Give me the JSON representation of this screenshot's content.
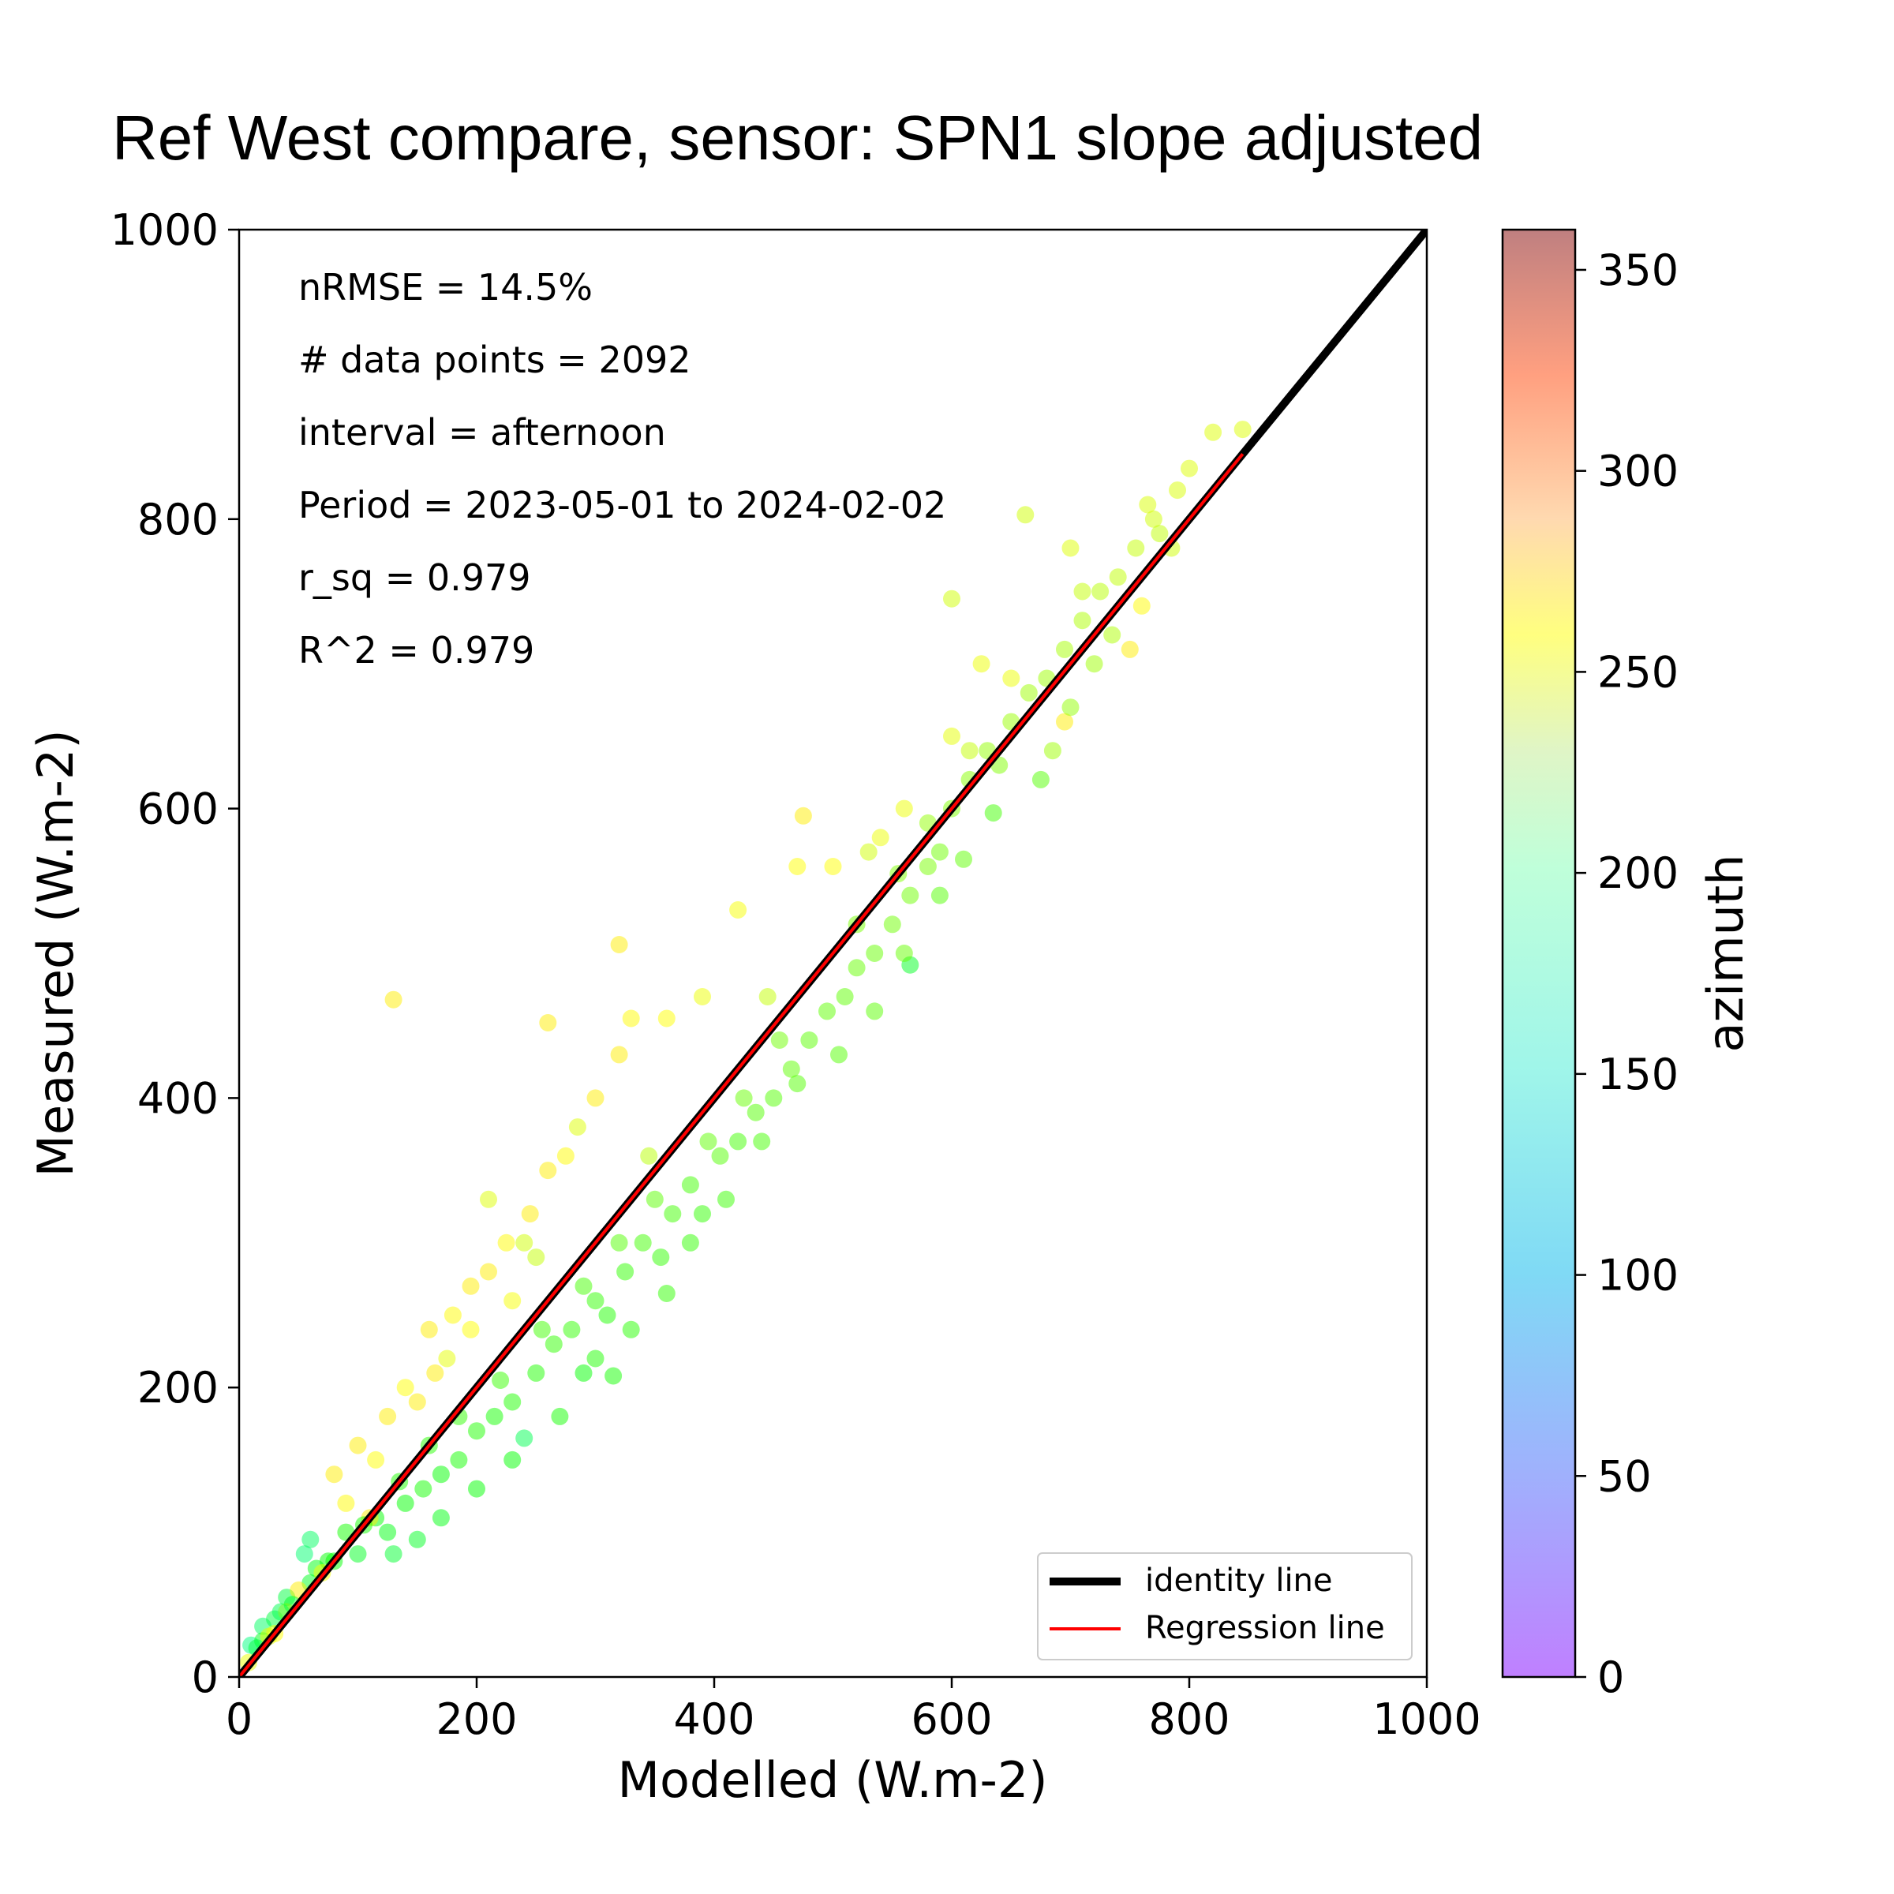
{
  "chart_data": {
    "type": "scatter",
    "title": "Ref West compare, sensor: SPN1 slope adjusted",
    "xlabel": "Modelled (W.m-2)",
    "ylabel": "Measured (W.m-2)",
    "xlim": [
      0,
      1000
    ],
    "ylim": [
      0,
      1000
    ],
    "xticks": [
      "0",
      "200",
      "400",
      "600",
      "800",
      "1000"
    ],
    "yticks": [
      "0",
      "200",
      "400",
      "600",
      "800",
      "1000"
    ],
    "grid": false,
    "annotations": [
      "nRMSE = 14.5%",
      "# data points = 2092",
      "interval = afternoon",
      "Period = 2023-05-01 to 2024-02-02",
      "r_sq = 0.979",
      "R^2 = 0.979"
    ],
    "legend": {
      "position": "lower-right",
      "entries": [
        {
          "label": "identity line",
          "color": "#000000"
        },
        {
          "label": "Regression line",
          "color": "#ff0000"
        }
      ]
    },
    "colorbar": {
      "label": "azimuth",
      "range": [
        0,
        360
      ],
      "ticks": [
        "0",
        "50",
        "100",
        "150",
        "200",
        "250",
        "300",
        "350"
      ],
      "colormap": "rainbow"
    },
    "identity_line": {
      "x": [
        0,
        1000
      ],
      "y": [
        0,
        1000
      ]
    },
    "regression_line": {
      "x": [
        0,
        845
      ],
      "y": [
        0,
        845
      ]
    },
    "series": [
      {
        "values": [
          {
            "x": 10,
            "y": 22,
            "c": 160
          },
          {
            "x": 20,
            "y": 35,
            "c": 170
          },
          {
            "x": 30,
            "y": 40,
            "c": 180
          },
          {
            "x": 40,
            "y": 55,
            "c": 180
          },
          {
            "x": 55,
            "y": 85,
            "c": 165
          },
          {
            "x": 60,
            "y": 65,
            "c": 190
          },
          {
            "x": 75,
            "y": 80,
            "c": 200
          },
          {
            "x": 90,
            "y": 100,
            "c": 205
          },
          {
            "x": 100,
            "y": 85,
            "c": 190
          },
          {
            "x": 115,
            "y": 110,
            "c": 200
          },
          {
            "x": 125,
            "y": 100,
            "c": 195
          },
          {
            "x": 140,
            "y": 120,
            "c": 200
          },
          {
            "x": 155,
            "y": 130,
            "c": 205
          },
          {
            "x": 170,
            "y": 140,
            "c": 200
          },
          {
            "x": 185,
            "y": 150,
            "c": 205
          },
          {
            "x": 200,
            "y": 170,
            "c": 210
          },
          {
            "x": 215,
            "y": 180,
            "c": 205
          },
          {
            "x": 230,
            "y": 190,
            "c": 210
          },
          {
            "x": 240,
            "y": 165,
            "c": 175
          },
          {
            "x": 250,
            "y": 210,
            "c": 210
          },
          {
            "x": 265,
            "y": 230,
            "c": 215
          },
          {
            "x": 280,
            "y": 240,
            "c": 215
          },
          {
            "x": 290,
            "y": 210,
            "c": 200
          },
          {
            "x": 300,
            "y": 260,
            "c": 215
          },
          {
            "x": 310,
            "y": 250,
            "c": 210
          },
          {
            "x": 315,
            "y": 208,
            "c": 205
          },
          {
            "x": 325,
            "y": 280,
            "c": 215
          },
          {
            "x": 340,
            "y": 300,
            "c": 220
          },
          {
            "x": 355,
            "y": 290,
            "c": 215
          },
          {
            "x": 365,
            "y": 320,
            "c": 220
          },
          {
            "x": 380,
            "y": 340,
            "c": 220
          },
          {
            "x": 390,
            "y": 320,
            "c": 215
          },
          {
            "x": 405,
            "y": 360,
            "c": 225
          },
          {
            "x": 420,
            "y": 370,
            "c": 220
          },
          {
            "x": 435,
            "y": 390,
            "c": 225
          },
          {
            "x": 450,
            "y": 400,
            "c": 225
          },
          {
            "x": 465,
            "y": 420,
            "c": 230
          },
          {
            "x": 480,
            "y": 440,
            "c": 228
          },
          {
            "x": 495,
            "y": 460,
            "c": 230
          },
          {
            "x": 510,
            "y": 470,
            "c": 230
          },
          {
            "x": 520,
            "y": 490,
            "c": 232
          },
          {
            "x": 535,
            "y": 500,
            "c": 232
          },
          {
            "x": 550,
            "y": 520,
            "c": 235
          },
          {
            "x": 565,
            "y": 540,
            "c": 235
          },
          {
            "x": 565,
            "y": 492,
            "c": 190
          },
          {
            "x": 580,
            "y": 560,
            "c": 238
          },
          {
            "x": 590,
            "y": 540,
            "c": 225
          },
          {
            "x": 600,
            "y": 600,
            "c": 240
          },
          {
            "x": 615,
            "y": 620,
            "c": 242
          },
          {
            "x": 630,
            "y": 640,
            "c": 245
          },
          {
            "x": 635,
            "y": 597,
            "c": 220
          },
          {
            "x": 650,
            "y": 660,
            "c": 248
          },
          {
            "x": 665,
            "y": 680,
            "c": 250
          },
          {
            "x": 680,
            "y": 690,
            "c": 250
          },
          {
            "x": 695,
            "y": 710,
            "c": 252
          },
          {
            "x": 710,
            "y": 730,
            "c": 255
          },
          {
            "x": 725,
            "y": 750,
            "c": 258
          },
          {
            "x": 740,
            "y": 760,
            "c": 260
          },
          {
            "x": 755,
            "y": 780,
            "c": 262
          },
          {
            "x": 770,
            "y": 800,
            "c": 265
          },
          {
            "x": 790,
            "y": 820,
            "c": 268
          },
          {
            "x": 800,
            "y": 835,
            "c": 270
          },
          {
            "x": 820,
            "y": 860,
            "c": 270
          },
          {
            "x": 845,
            "y": 862,
            "c": 270
          },
          {
            "x": 662,
            "y": 803,
            "c": 265
          },
          {
            "x": 600,
            "y": 745,
            "c": 265
          },
          {
            "x": 130,
            "y": 468,
            "c": 285
          },
          {
            "x": 320,
            "y": 506,
            "c": 285
          },
          {
            "x": 260,
            "y": 452,
            "c": 285
          },
          {
            "x": 150,
            "y": 190,
            "c": 285
          },
          {
            "x": 165,
            "y": 210,
            "c": 285
          },
          {
            "x": 180,
            "y": 250,
            "c": 282
          },
          {
            "x": 195,
            "y": 270,
            "c": 285
          },
          {
            "x": 210,
            "y": 280,
            "c": 285
          },
          {
            "x": 225,
            "y": 300,
            "c": 282
          },
          {
            "x": 245,
            "y": 320,
            "c": 285
          },
          {
            "x": 260,
            "y": 350,
            "c": 285
          },
          {
            "x": 275,
            "y": 360,
            "c": 282
          },
          {
            "x": 300,
            "y": 400,
            "c": 285
          },
          {
            "x": 320,
            "y": 430,
            "c": 285
          },
          {
            "x": 330,
            "y": 455,
            "c": 282
          },
          {
            "x": 360,
            "y": 455,
            "c": 280
          },
          {
            "x": 390,
            "y": 470,
            "c": 275
          },
          {
            "x": 420,
            "y": 530,
            "c": 278
          },
          {
            "x": 470,
            "y": 560,
            "c": 280
          },
          {
            "x": 475,
            "y": 595,
            "c": 285
          },
          {
            "x": 500,
            "y": 560,
            "c": 280
          },
          {
            "x": 540,
            "y": 580,
            "c": 275
          },
          {
            "x": 560,
            "y": 600,
            "c": 275
          },
          {
            "x": 600,
            "y": 650,
            "c": 272
          },
          {
            "x": 625,
            "y": 700,
            "c": 275
          },
          {
            "x": 650,
            "y": 690,
            "c": 275
          },
          {
            "x": 695,
            "y": 660,
            "c": 285
          },
          {
            "x": 700,
            "y": 780,
            "c": 270
          },
          {
            "x": 750,
            "y": 710,
            "c": 285
          },
          {
            "x": 760,
            "y": 740,
            "c": 282
          },
          {
            "x": 80,
            "y": 140,
            "c": 285
          },
          {
            "x": 100,
            "y": 160,
            "c": 285
          },
          {
            "x": 110,
            "y": 110,
            "c": 285
          },
          {
            "x": 125,
            "y": 180,
            "c": 285
          },
          {
            "x": 140,
            "y": 200,
            "c": 280
          },
          {
            "x": 90,
            "y": 120,
            "c": 282
          },
          {
            "x": 210,
            "y": 330,
            "c": 270
          },
          {
            "x": 240,
            "y": 300,
            "c": 265
          },
          {
            "x": 285,
            "y": 380,
            "c": 270
          },
          {
            "x": 160,
            "y": 240,
            "c": 285
          },
          {
            "x": 195,
            "y": 240,
            "c": 280
          },
          {
            "x": 230,
            "y": 260,
            "c": 278
          },
          {
            "x": 50,
            "y": 60,
            "c": 285
          },
          {
            "x": 40,
            "y": 45,
            "c": 285
          },
          {
            "x": 30,
            "y": 30,
            "c": 280
          },
          {
            "x": 20,
            "y": 25,
            "c": 190
          },
          {
            "x": 60,
            "y": 95,
            "c": 170
          },
          {
            "x": 130,
            "y": 85,
            "c": 185
          },
          {
            "x": 150,
            "y": 95,
            "c": 190
          },
          {
            "x": 170,
            "y": 110,
            "c": 195
          },
          {
            "x": 200,
            "y": 130,
            "c": 200
          },
          {
            "x": 230,
            "y": 150,
            "c": 200
          },
          {
            "x": 270,
            "y": 180,
            "c": 205
          },
          {
            "x": 300,
            "y": 220,
            "c": 210
          },
          {
            "x": 330,
            "y": 240,
            "c": 212
          },
          {
            "x": 360,
            "y": 265,
            "c": 215
          },
          {
            "x": 380,
            "y": 300,
            "c": 215
          },
          {
            "x": 410,
            "y": 330,
            "c": 218
          },
          {
            "x": 440,
            "y": 370,
            "c": 222
          },
          {
            "x": 470,
            "y": 410,
            "c": 225
          },
          {
            "x": 505,
            "y": 430,
            "c": 225
          },
          {
            "x": 535,
            "y": 460,
            "c": 228
          },
          {
            "x": 560,
            "y": 500,
            "c": 232
          },
          {
            "x": 590,
            "y": 570,
            "c": 235
          },
          {
            "x": 610,
            "y": 565,
            "c": 230
          },
          {
            "x": 640,
            "y": 630,
            "c": 240
          },
          {
            "x": 700,
            "y": 670,
            "c": 245
          },
          {
            "x": 720,
            "y": 700,
            "c": 250
          },
          {
            "x": 775,
            "y": 790,
            "c": 260
          },
          {
            "x": 785,
            "y": 780,
            "c": 265
          },
          {
            "x": 735,
            "y": 720,
            "c": 255
          },
          {
            "x": 685,
            "y": 640,
            "c": 250
          },
          {
            "x": 675,
            "y": 620,
            "c": 225
          },
          {
            "x": 580,
            "y": 590,
            "c": 245
          },
          {
            "x": 555,
            "y": 555,
            "c": 240
          },
          {
            "x": 520,
            "y": 520,
            "c": 238
          },
          {
            "x": 455,
            "y": 440,
            "c": 235
          },
          {
            "x": 425,
            "y": 400,
            "c": 232
          },
          {
            "x": 395,
            "y": 370,
            "c": 230
          },
          {
            "x": 350,
            "y": 330,
            "c": 228
          },
          {
            "x": 320,
            "y": 300,
            "c": 225
          },
          {
            "x": 290,
            "y": 270,
            "c": 222
          },
          {
            "x": 255,
            "y": 240,
            "c": 220
          },
          {
            "x": 220,
            "y": 205,
            "c": 218
          },
          {
            "x": 185,
            "y": 180,
            "c": 215
          },
          {
            "x": 160,
            "y": 160,
            "c": 212
          },
          {
            "x": 135,
            "y": 135,
            "c": 210
          },
          {
            "x": 105,
            "y": 105,
            "c": 205
          },
          {
            "x": 80,
            "y": 80,
            "c": 200
          },
          {
            "x": 65,
            "y": 75,
            "c": 195
          },
          {
            "x": 45,
            "y": 50,
            "c": 190
          },
          {
            "x": 35,
            "y": 45,
            "c": 175
          },
          {
            "x": 15,
            "y": 20,
            "c": 180
          },
          {
            "x": 8,
            "y": 10,
            "c": 275
          },
          {
            "x": 25,
            "y": 28,
            "c": 272
          },
          {
            "x": 70,
            "y": 72,
            "c": 278
          },
          {
            "x": 115,
            "y": 150,
            "c": 280
          },
          {
            "x": 175,
            "y": 220,
            "c": 272
          },
          {
            "x": 250,
            "y": 290,
            "c": 262
          },
          {
            "x": 345,
            "y": 360,
            "c": 258
          },
          {
            "x": 445,
            "y": 470,
            "c": 262
          },
          {
            "x": 530,
            "y": 570,
            "c": 265
          },
          {
            "x": 615,
            "y": 640,
            "c": 262
          },
          {
            "x": 710,
            "y": 750,
            "c": 262
          },
          {
            "x": 765,
            "y": 810,
            "c": 268
          }
        ]
      }
    ]
  }
}
